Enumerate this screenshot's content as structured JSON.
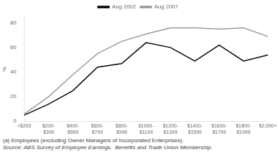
{
  "chart_data": {
    "type": "line",
    "categories": [
      "<$200",
      "$200-\n$399",
      "$400-\n$599",
      "$600-\n$799",
      "$800-\n$999",
      "$1000-\n$1199",
      "$1200-\n$1399",
      "$1400-\n$1599",
      "$1600-\n$1799",
      "$1800-\n$1999",
      "$2,000+"
    ],
    "series": [
      {
        "name": "Aug 2002",
        "color": "#000000",
        "values": [
          5,
          14,
          25,
          44,
          47,
          64,
          60,
          49,
          62,
          49,
          54
        ]
      },
      {
        "name": "Aug 2007",
        "color": "#999999",
        "values": [
          6,
          20,
          38,
          55,
          65,
          71,
          76,
          76,
          75,
          76,
          69
        ]
      }
    ],
    "ylabel": "%",
    "ylim": [
      0,
      85
    ],
    "yticks": [
      0,
      20,
      40,
      60,
      80
    ],
    "grid": false,
    "legend": "top",
    "annotations": [
      "(a) Employees (excluding Owner Managers of Incorporated Enterprises).",
      "Source: ABS Survey of Employee Earnings,  Benefits and Trade Union Membership."
    ]
  }
}
